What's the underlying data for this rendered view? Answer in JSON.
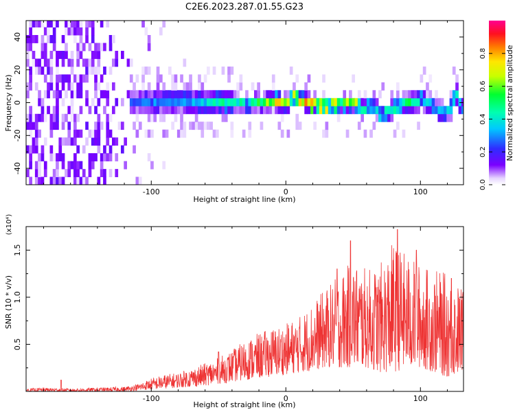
{
  "title": "C2E6.2023.287.01.55.G23",
  "chart_data": [
    {
      "type": "heatmap",
      "title": "C2E6.2023.287.01.55.G23",
      "xlabel": "Height of straight line (km)",
      "ylabel": "Frequency (Hz)",
      "xlim": [
        -193,
        132
      ],
      "ylim": [
        -50,
        50
      ],
      "x_ticks": [
        -100,
        0,
        100
      ],
      "x_tick_labels": [
        "-100",
        "0",
        "100"
      ],
      "y_ticks": [
        -40,
        -20,
        0,
        20,
        40
      ],
      "y_tick_labels": [
        "-40",
        "-20",
        "0",
        "20",
        "40"
      ],
      "colorbar": {
        "label": "Normalized spectral amplitude",
        "range": [
          0,
          1
        ],
        "ticks": [
          0.0,
          0.2,
          0.4,
          0.6,
          0.8
        ],
        "tick_labels": [
          "0.0",
          "0.2",
          "0.4",
          "0.6",
          "0.8"
        ],
        "colormap": "rainbow (white-violet-blue-cyan-green-yellow-red-magenta)"
      },
      "ridge": {
        "description": "frequency track of peak spectral amplitude vs height",
        "height_km": [
          -120,
          -110,
          -100,
          -90,
          -80,
          -70,
          -60,
          -50,
          -40,
          -30,
          -20,
          -10,
          0,
          5,
          10,
          20,
          30,
          40,
          50,
          55,
          60,
          65,
          70,
          80,
          90,
          100,
          110,
          118,
          122,
          125,
          130
        ],
        "frequency_hz": [
          0,
          1,
          0,
          1,
          2,
          1,
          0,
          1,
          0,
          -1,
          0,
          1,
          0,
          4,
          1,
          -1,
          -2,
          -1,
          0,
          -4,
          -2,
          -3,
          -8,
          -2,
          -1,
          2,
          -3,
          -7,
          -1,
          6,
          -4
        ],
        "peak_amplitude": [
          0.25,
          0.28,
          0.3,
          0.32,
          0.35,
          0.38,
          0.4,
          0.45,
          0.48,
          0.5,
          0.6,
          0.75,
          0.82,
          0.7,
          0.85,
          0.8,
          0.78,
          0.75,
          0.72,
          0.55,
          0.6,
          0.5,
          0.45,
          0.55,
          0.6,
          0.5,
          0.45,
          0.4,
          0.5,
          0.55,
          0.4
        ]
      }
    },
    {
      "type": "line",
      "xlabel": "Height of straight line (km)",
      "ylabel": "SNR (10 * v/v)",
      "y_multiplier_label": "(x10⁴)",
      "xlim": [
        -193,
        132
      ],
      "ylim": [
        0,
        1.75
      ],
      "x_ticks": [
        -100,
        0,
        100
      ],
      "x_tick_labels": [
        "-100",
        "0",
        "100"
      ],
      "y_ticks": [
        0.5,
        1.0,
        1.5
      ],
      "y_tick_labels": [
        "0.5",
        "1.0",
        "1.5"
      ],
      "series": [
        {
          "color": "#ee3333",
          "envelope_x": [
            -193,
            -180,
            -160,
            -140,
            -120,
            -110,
            -100,
            -90,
            -80,
            -70,
            -60,
            -50,
            -40,
            -30,
            -20,
            -10,
            0,
            10,
            20,
            30,
            40,
            50,
            60,
            70,
            80,
            90,
            100,
            110,
            120,
            132
          ],
          "envelope_max": [
            0.03,
            0.04,
            0.03,
            0.04,
            0.05,
            0.08,
            0.14,
            0.18,
            0.2,
            0.25,
            0.3,
            0.36,
            0.44,
            0.55,
            0.62,
            0.68,
            0.72,
            0.8,
            0.95,
            1.1,
            1.25,
            1.4,
            1.3,
            1.35,
            1.6,
            1.45,
            1.35,
            1.3,
            1.25,
            1.1
          ],
          "envelope_min": [
            0.0,
            0.0,
            0.0,
            0.0,
            0.0,
            0.01,
            0.02,
            0.03,
            0.04,
            0.05,
            0.06,
            0.08,
            0.1,
            0.12,
            0.14,
            0.16,
            0.18,
            0.2,
            0.22,
            0.25,
            0.25,
            0.25,
            0.25,
            0.2,
            0.2,
            0.25,
            0.25,
            0.2,
            0.15,
            0.2
          ],
          "peaks": [
            [
              -167,
              0.12
            ],
            [
              -50,
              0.42
            ],
            [
              38,
              1.3
            ],
            [
              48,
              1.6
            ],
            [
              83,
              1.72
            ],
            [
              97,
              1.5
            ],
            [
              123,
              1.2
            ]
          ]
        }
      ]
    }
  ]
}
